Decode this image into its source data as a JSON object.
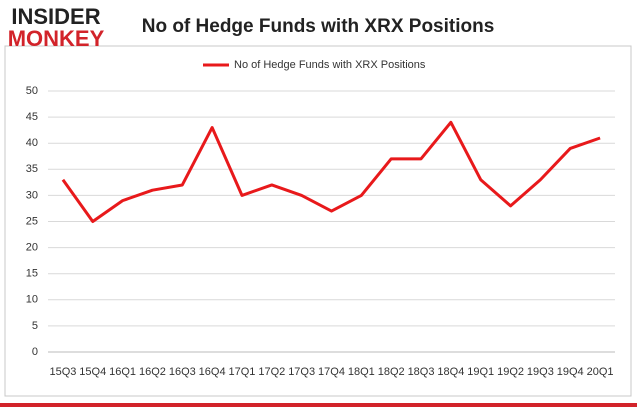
{
  "logo": {
    "top": "INSIDER",
    "bottom": "MONKEY"
  },
  "chart_data": {
    "type": "line",
    "title": "No of Hedge Funds with XRX Positions",
    "categories": [
      "15Q3",
      "15Q4",
      "16Q1",
      "16Q2",
      "16Q3",
      "16Q4",
      "17Q1",
      "17Q2",
      "17Q3",
      "17Q4",
      "18Q1",
      "18Q2",
      "18Q3",
      "18Q4",
      "19Q1",
      "19Q2",
      "19Q3",
      "19Q4",
      "20Q1"
    ],
    "series": [
      {
        "name": "No of Hedge Funds with XRX Positions",
        "color": "#e8191b",
        "values": [
          33,
          25,
          29,
          31,
          32,
          43,
          30,
          32,
          30,
          27,
          30,
          37,
          37,
          44,
          33,
          28,
          33,
          39,
          41
        ]
      }
    ],
    "ylim": [
      0,
      50
    ],
    "yticks": [
      0,
      5,
      10,
      15,
      20,
      25,
      30,
      35,
      40,
      45,
      50
    ],
    "grid": true,
    "legend": "top"
  }
}
